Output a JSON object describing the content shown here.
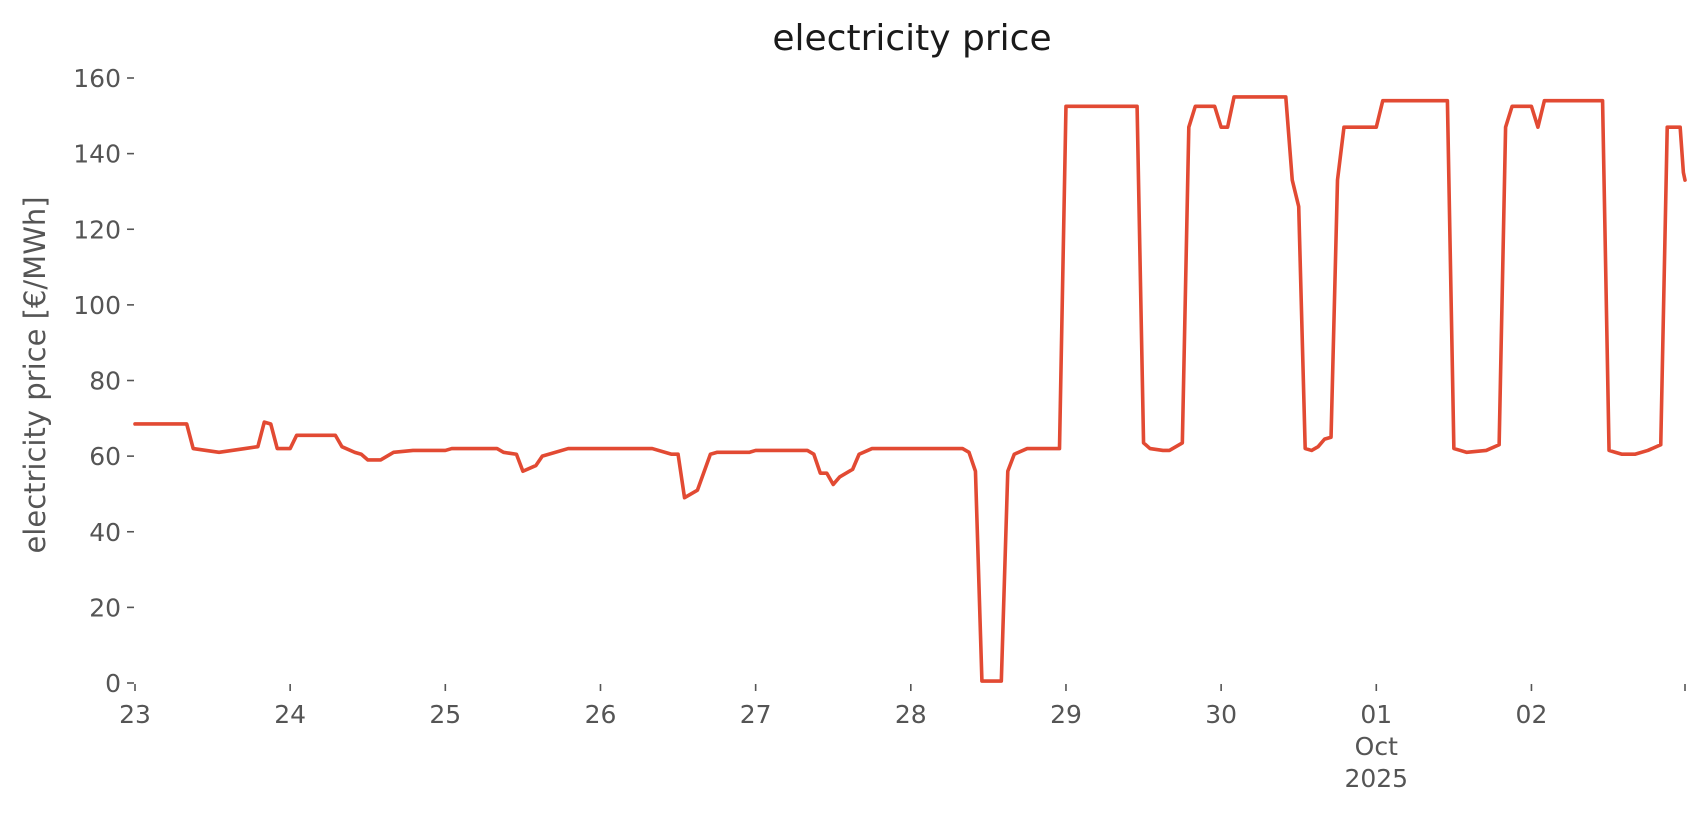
{
  "chart_data": {
    "type": "line",
    "title": "electricity price",
    "xlabel": "",
    "ylabel": "electricity price [€/MWh]",
    "ylim": [
      0,
      160
    ],
    "xlim": [
      "2025-09-23T00:00",
      "2025-10-02T23:45"
    ],
    "yticks": [
      0,
      20,
      40,
      60,
      80,
      100,
      120,
      140,
      160
    ],
    "xticks": [
      {
        "date": "2025-09-23",
        "lines": [
          "23"
        ]
      },
      {
        "date": "2025-09-24",
        "lines": [
          "24"
        ]
      },
      {
        "date": "2025-09-25",
        "lines": [
          "25"
        ]
      },
      {
        "date": "2025-09-26",
        "lines": [
          "26"
        ]
      },
      {
        "date": "2025-09-27",
        "lines": [
          "27"
        ]
      },
      {
        "date": "2025-09-28",
        "lines": [
          "28"
        ]
      },
      {
        "date": "2025-09-29",
        "lines": [
          "29"
        ]
      },
      {
        "date": "2025-09-30",
        "lines": [
          "30"
        ]
      },
      {
        "date": "2025-10-01",
        "lines": [
          "01",
          "Oct",
          "2025"
        ]
      },
      {
        "date": "2025-10-02",
        "lines": [
          "02"
        ]
      }
    ],
    "grid": false,
    "colors": {
      "line": "#E24A33",
      "text": "#555555",
      "title": "#1a1a1a"
    },
    "series": [
      {
        "points": [
          [
            "2025-09-23T00:00",
            68.5
          ],
          [
            "2025-09-23T08:00",
            68.5
          ],
          [
            "2025-09-23T09:00",
            62.0
          ],
          [
            "2025-09-23T11:00",
            61.5
          ],
          [
            "2025-09-23T13:00",
            61.0
          ],
          [
            "2025-09-23T15:00",
            61.5
          ],
          [
            "2025-09-23T17:00",
            62.0
          ],
          [
            "2025-09-23T19:00",
            62.5
          ],
          [
            "2025-09-23T20:00",
            69.0
          ],
          [
            "2025-09-23T21:00",
            68.5
          ],
          [
            "2025-09-23T22:00",
            62.0
          ],
          [
            "2025-09-24T00:00",
            62.0
          ],
          [
            "2025-09-24T01:00",
            65.5
          ],
          [
            "2025-09-24T07:00",
            65.5
          ],
          [
            "2025-09-24T08:00",
            62.5
          ],
          [
            "2025-09-24T10:00",
            61.0
          ],
          [
            "2025-09-24T11:00",
            60.5
          ],
          [
            "2025-09-24T12:00",
            59.0
          ],
          [
            "2025-09-24T14:00",
            59.0
          ],
          [
            "2025-09-24T16:00",
            61.0
          ],
          [
            "2025-09-24T19:00",
            61.5
          ],
          [
            "2025-09-25T00:00",
            61.5
          ],
          [
            "2025-09-25T01:00",
            62.0
          ],
          [
            "2025-09-25T08:00",
            62.0
          ],
          [
            "2025-09-25T09:00",
            61.0
          ],
          [
            "2025-09-25T11:00",
            60.5
          ],
          [
            "2025-09-25T12:00",
            56.0
          ],
          [
            "2025-09-25T14:00",
            57.5
          ],
          [
            "2025-09-25T15:00",
            60.0
          ],
          [
            "2025-09-25T19:00",
            62.0
          ],
          [
            "2025-09-26T08:00",
            62.0
          ],
          [
            "2025-09-26T11:00",
            60.5
          ],
          [
            "2025-09-26T12:00",
            60.5
          ],
          [
            "2025-09-26T13:00",
            49.0
          ],
          [
            "2025-09-26T15:00",
            51.0
          ],
          [
            "2025-09-26T17:00",
            60.5
          ],
          [
            "2025-09-26T18:00",
            61.0
          ],
          [
            "2025-09-26T23:00",
            61.0
          ],
          [
            "2025-09-27T00:00",
            61.5
          ],
          [
            "2025-09-27T08:00",
            61.5
          ],
          [
            "2025-09-27T09:00",
            60.5
          ],
          [
            "2025-09-27T10:00",
            55.5
          ],
          [
            "2025-09-27T11:00",
            55.5
          ],
          [
            "2025-09-27T12:00",
            52.5
          ],
          [
            "2025-09-27T13:00",
            54.5
          ],
          [
            "2025-09-27T15:00",
            56.5
          ],
          [
            "2025-09-27T16:00",
            60.5
          ],
          [
            "2025-09-27T18:00",
            62.0
          ],
          [
            "2025-09-28T08:00",
            62.0
          ],
          [
            "2025-09-28T09:00",
            61.0
          ],
          [
            "2025-09-28T10:00",
            56.0
          ],
          [
            "2025-09-28T11:00",
            0.5
          ],
          [
            "2025-09-28T14:00",
            0.5
          ],
          [
            "2025-09-28T15:00",
            56.0
          ],
          [
            "2025-09-28T16:00",
            60.5
          ],
          [
            "2025-09-28T18:00",
            62.0
          ],
          [
            "2025-09-28T23:00",
            62.0
          ],
          [
            "2025-09-29T00:00",
            152.5
          ],
          [
            "2025-09-29T11:00",
            152.5
          ],
          [
            "2025-09-29T12:00",
            63.5
          ],
          [
            "2025-09-29T13:00",
            62.0
          ],
          [
            "2025-09-29T15:00",
            61.5
          ],
          [
            "2025-09-29T16:00",
            61.5
          ],
          [
            "2025-09-29T18:00",
            63.5
          ],
          [
            "2025-09-29T19:00",
            147.0
          ],
          [
            "2025-09-29T20:00",
            152.5
          ],
          [
            "2025-09-29T23:00",
            152.5
          ],
          [
            "2025-09-30T00:00",
            147.0
          ],
          [
            "2025-09-30T01:00",
            147.0
          ],
          [
            "2025-09-30T02:00",
            155.0
          ],
          [
            "2025-09-30T10:00",
            155.0
          ],
          [
            "2025-09-30T11:00",
            133.0
          ],
          [
            "2025-09-30T12:00",
            126.0
          ],
          [
            "2025-09-30T13:00",
            62.0
          ],
          [
            "2025-09-30T14:00",
            61.5
          ],
          [
            "2025-09-30T15:00",
            62.5
          ],
          [
            "2025-09-30T16:00",
            64.5
          ],
          [
            "2025-09-30T17:00",
            65.0
          ],
          [
            "2025-09-30T18:00",
            133.0
          ],
          [
            "2025-09-30T19:00",
            147.0
          ],
          [
            "2025-10-01T00:00",
            147.0
          ],
          [
            "2025-10-01T01:00",
            154.0
          ],
          [
            "2025-10-01T11:00",
            154.0
          ],
          [
            "2025-10-01T12:00",
            62.0
          ],
          [
            "2025-10-01T13:00",
            61.5
          ],
          [
            "2025-10-01T14:00",
            61.0
          ],
          [
            "2025-10-01T17:00",
            61.5
          ],
          [
            "2025-10-01T19:00",
            63.0
          ],
          [
            "2025-10-01T20:00",
            147.0
          ],
          [
            "2025-10-01T21:00",
            152.5
          ],
          [
            "2025-10-02T00:00",
            152.5
          ],
          [
            "2025-10-02T01:00",
            147.0
          ],
          [
            "2025-10-02T02:00",
            154.0
          ],
          [
            "2025-10-02T11:00",
            154.0
          ],
          [
            "2025-10-02T12:00",
            61.5
          ],
          [
            "2025-10-02T13:00",
            61.0
          ],
          [
            "2025-10-02T14:00",
            60.5
          ],
          [
            "2025-10-02T16:00",
            60.5
          ],
          [
            "2025-10-02T18:00",
            61.5
          ],
          [
            "2025-10-02T20:00",
            63.0
          ],
          [
            "2025-10-02T21:00",
            147.0
          ],
          [
            "2025-10-02T23:00",
            147.0
          ],
          [
            "2025-10-02T23:30",
            135.0
          ],
          [
            "2025-10-02T23:45",
            133.0
          ]
        ]
      }
    ]
  }
}
